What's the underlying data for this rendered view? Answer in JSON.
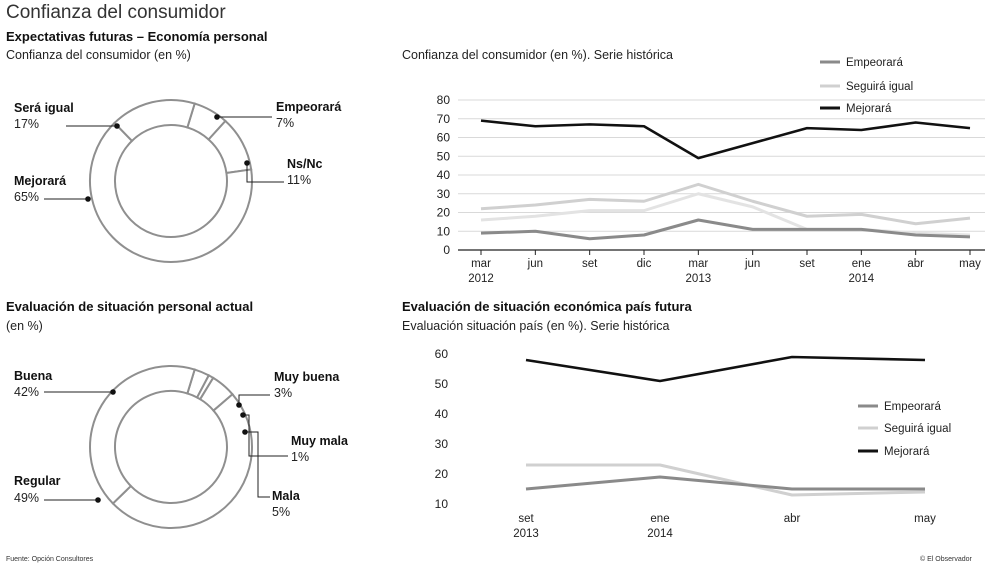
{
  "title": "Confianza del consumidor",
  "source": "Fuente: Opción Consultores",
  "credit": "© El Observador",
  "chart_data": [
    {
      "type": "pie",
      "id": "expectativas",
      "title": "Expectativas futuras – Economía personal",
      "subtitle": "Confianza del consumidor (en %)",
      "slices": [
        {
          "label": "Empeorará",
          "value": 7,
          "display": "7%"
        },
        {
          "label": "Ns/Nc",
          "value": 11,
          "display": "11%"
        },
        {
          "label": "Mejorará",
          "value": 65,
          "display": "65%"
        },
        {
          "label": "Será igual",
          "value": 17,
          "display": "17%"
        }
      ]
    },
    {
      "type": "line",
      "id": "historica",
      "title": "Confianza del consumidor (en %). Serie histórica",
      "categories": [
        "mar\n2012",
        "jun",
        "set",
        "dic",
        "mar\n2013",
        "jun",
        "set",
        "ene\n2014",
        "abr",
        "may"
      ],
      "ylim": [
        0,
        80
      ],
      "yticks": [
        0,
        10,
        20,
        30,
        40,
        50,
        60,
        70,
        80
      ],
      "grid": true,
      "legend_position": "top-right",
      "series": [
        {
          "name": "Empeorará",
          "color": "#8a8a8a",
          "values": [
            9,
            10,
            6,
            8,
            16,
            11,
            11,
            11,
            8,
            7
          ]
        },
        {
          "name": "Seguirá igual",
          "color": "#d0d0d0",
          "values": [
            22,
            24,
            27,
            26,
            35,
            26,
            18,
            19,
            14,
            17
          ]
        },
        {
          "name": "Mejorará",
          "color": "#111111",
          "values": [
            69,
            66,
            67,
            66,
            49,
            57,
            65,
            64,
            68,
            65
          ]
        },
        {
          "name": "",
          "color": "#e3e3e3",
          "values": [
            16,
            18,
            21,
            21,
            30,
            23,
            11,
            11,
            9,
            8
          ]
        }
      ]
    },
    {
      "type": "pie",
      "id": "situacion_personal",
      "title": "Evaluación de situación personal actual",
      "subtitle": "(en %)",
      "slices": [
        {
          "label": "Muy buena",
          "value": 3,
          "display": "3%"
        },
        {
          "label": "Muy mala",
          "value": 1,
          "display": "1%"
        },
        {
          "label": "Mala",
          "value": 5,
          "display": "5%"
        },
        {
          "label": "Regular",
          "value": 49,
          "display": "49%"
        },
        {
          "label": "Buena",
          "value": 42,
          "display": "42%"
        }
      ]
    },
    {
      "type": "line",
      "id": "situacion_pais",
      "title": "Evaluación de situación económica país futura",
      "subtitle": "Evaluación situación país (en %). Serie histórica",
      "categories": [
        "set\n2013",
        "ene\n2014",
        "abr",
        "may"
      ],
      "ylim": [
        10,
        60
      ],
      "yticks": [
        10,
        20,
        30,
        40,
        50,
        60
      ],
      "grid": false,
      "legend_position": "right",
      "series": [
        {
          "name": "Empeorará",
          "color": "#8a8a8a",
          "values": [
            15,
            19,
            15,
            15
          ]
        },
        {
          "name": "Seguirá igual",
          "color": "#d0d0d0",
          "values": [
            23,
            23,
            13,
            14
          ]
        },
        {
          "name": "Mejorará",
          "color": "#111111",
          "values": [
            58,
            51,
            59,
            58
          ]
        }
      ]
    }
  ]
}
